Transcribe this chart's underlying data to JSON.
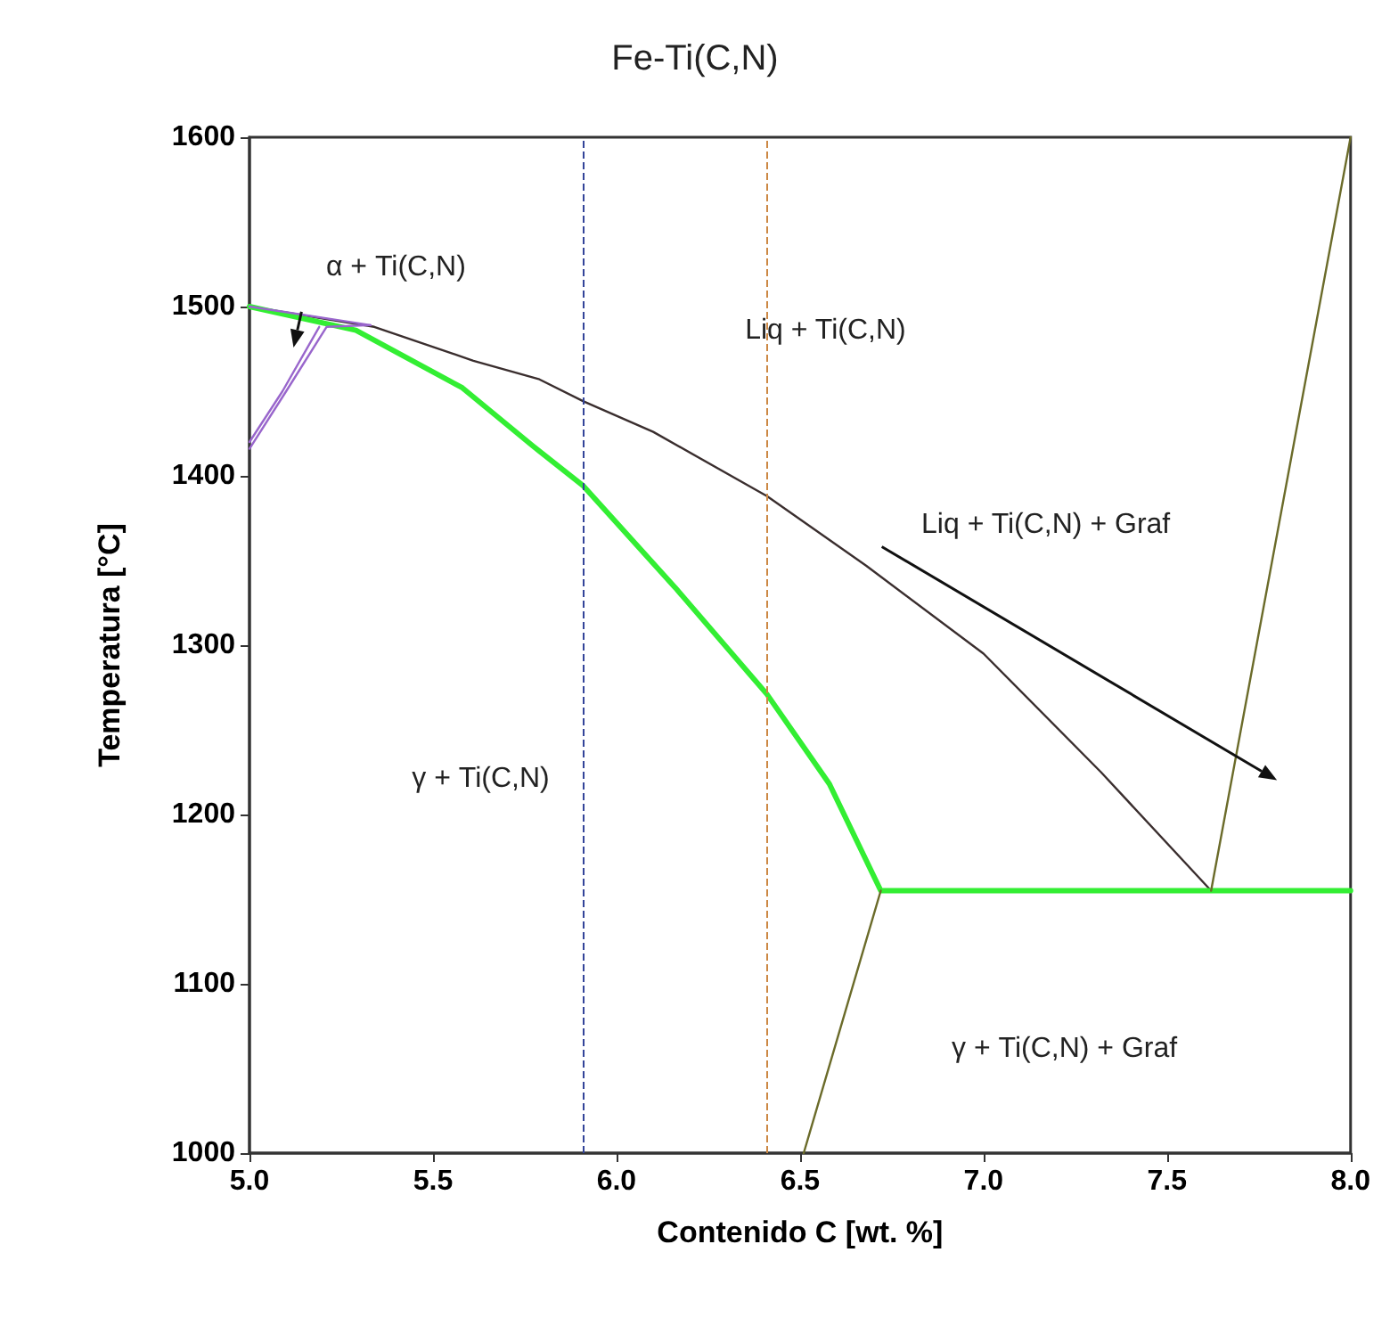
{
  "chart_data": {
    "type": "line",
    "title": "Fe-Ti(C,N)",
    "xlabel": "Contenido C [wt. %]",
    "ylabel": "Temperatura [°C]",
    "xlim": [
      5,
      8
    ],
    "ylim": [
      1000,
      1600
    ],
    "xticks": [
      {
        "value": 5,
        "label": "5.0"
      },
      {
        "value": 5.5,
        "label": "5.5"
      },
      {
        "value": 6,
        "label": "6.0"
      },
      {
        "value": 6.5,
        "label": "6.5"
      },
      {
        "value": 7,
        "label": "7.0"
      },
      {
        "value": 7.5,
        "label": "7.5"
      },
      {
        "value": 8,
        "label": "8.0"
      }
    ],
    "yticks": [
      1000,
      1100,
      1200,
      1300,
      1400,
      1500,
      1600
    ],
    "grid": false,
    "marker": "none",
    "line_style": "solid",
    "series": [
      {
        "color": "#3a2e2e",
        "x": [
          5.0,
          5.34,
          5.61,
          5.79,
          5.91,
          6.1,
          6.41,
          6.68,
          7.0,
          7.32,
          7.62
        ],
        "values": [
          1500,
          1488,
          1468,
          1457,
          1444,
          1426,
          1388,
          1347,
          1295,
          1225,
          1155
        ]
      },
      {
        "color": "#33ee33",
        "x": [
          5.0,
          5.29,
          5.58,
          5.77,
          5.91,
          6.16,
          6.41,
          6.58,
          6.72,
          8.0
        ],
        "values": [
          1500,
          1486,
          1452,
          1418,
          1394,
          1334,
          1271,
          1218,
          1155,
          1155
        ]
      },
      {
        "color": "#6b6b2a",
        "x": [
          6.51,
          6.72
        ],
        "values": [
          1000,
          1155
        ]
      },
      {
        "color": "#6b6b2a",
        "x": [
          7.62,
          8.0
        ],
        "values": [
          1155,
          1600
        ]
      },
      {
        "color": "#9966cc",
        "x": [
          5.0,
          5.1,
          5.21,
          5.33
        ],
        "values": [
          1416,
          1450,
          1488,
          1489
        ]
      },
      {
        "color": "#9966cc",
        "x": [
          5.0,
          5.09,
          5.19
        ],
        "values": [
          1420,
          1450,
          1488
        ]
      },
      {
        "color": "#9966cc",
        "x": [
          5.0,
          5.33
        ],
        "values": [
          1500,
          1489
        ]
      }
    ],
    "ref_lines": [
      {
        "axis": "x",
        "value": 5.91,
        "color": "#334499",
        "line_style": "dashed"
      },
      {
        "axis": "x",
        "value": 6.41,
        "color": "#cc8844",
        "line_style": "dashed"
      }
    ],
    "annotations": [
      "α + Ti(C,N)",
      "Liq + Ti(C,N)",
      "Liq + Ti(C,N) + Graf",
      "γ + Ti(C,N)",
      "γ + Ti(C,N) + Graf"
    ]
  }
}
